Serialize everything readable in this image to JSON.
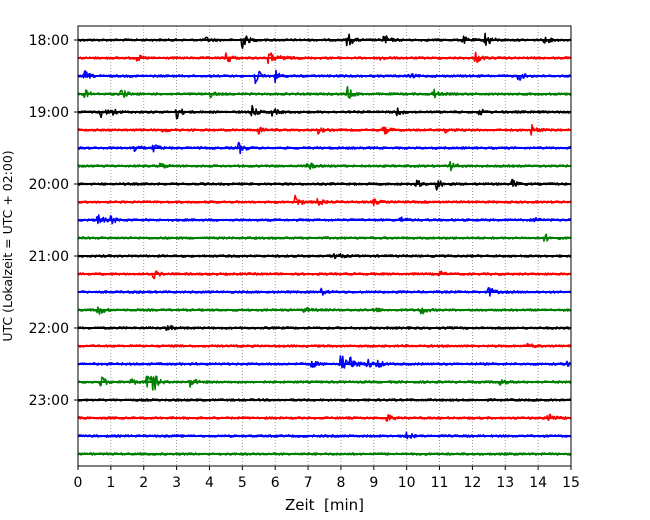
{
  "chart_data": {
    "type": "line",
    "chart_kind": "helicorder (seismogram drum plot)",
    "xlabel": "Zeit  [min]",
    "ylabel": "UTC (Lokalzeit = UTC + 02:00)",
    "xlim": [
      0,
      15
    ],
    "x_ticks": [
      0,
      1,
      2,
      3,
      4,
      5,
      6,
      7,
      8,
      9,
      10,
      11,
      12,
      13,
      14,
      15
    ],
    "x_tick_labels": [
      "0",
      "1",
      "2",
      "3",
      "4",
      "5",
      "6",
      "7",
      "8",
      "9",
      "10",
      "11",
      "12",
      "13",
      "14",
      "15"
    ],
    "vertical_grid": true,
    "grid_style": "dotted",
    "y_tick_labels": [
      "18:00",
      "19:00",
      "20:00",
      "21:00",
      "22:00",
      "23:00"
    ],
    "trace_minutes": 15,
    "trace_colors": [
      "#000000",
      "#ff0000",
      "#0000ff",
      "#008000"
    ],
    "traces": [
      {
        "start": "18:00",
        "events": [
          [
            3.9,
            0.3
          ],
          [
            5.0,
            1.0
          ],
          [
            8.2,
            0.9
          ],
          [
            9.3,
            0.7
          ],
          [
            11.7,
            0.45
          ],
          [
            12.4,
            1.0
          ],
          [
            14.2,
            0.4
          ]
        ]
      },
      {
        "start": "18:15",
        "events": [
          [
            1.8,
            0.35
          ],
          [
            4.5,
            0.8
          ],
          [
            5.8,
            0.9
          ],
          [
            6.2,
            0.4
          ],
          [
            9.2,
            0.3
          ],
          [
            12.1,
            0.65
          ]
        ]
      },
      {
        "start": "18:30",
        "events": [
          [
            0.2,
            0.55
          ],
          [
            5.4,
            1.0
          ],
          [
            6.0,
            0.6
          ],
          [
            10.1,
            0.25
          ],
          [
            13.4,
            0.55
          ]
        ]
      },
      {
        "start": "18:45",
        "events": [
          [
            0.2,
            0.5
          ],
          [
            1.3,
            0.7
          ],
          [
            4.0,
            0.4
          ],
          [
            8.2,
            0.75
          ],
          [
            10.8,
            0.6
          ]
        ]
      },
      {
        "start": "19:00",
        "events": [
          [
            0.7,
            0.6
          ],
          [
            1.0,
            0.6
          ],
          [
            3.0,
            0.8
          ],
          [
            5.3,
            0.6
          ],
          [
            5.9,
            0.5
          ],
          [
            9.7,
            0.5
          ],
          [
            12.2,
            0.4
          ]
        ]
      },
      {
        "start": "19:15",
        "events": [
          [
            2.6,
            0.3
          ],
          [
            5.5,
            0.45
          ],
          [
            7.3,
            0.35
          ],
          [
            9.3,
            0.55
          ],
          [
            11.2,
            0.35
          ],
          [
            13.8,
            0.6
          ]
        ]
      },
      {
        "start": "19:30",
        "events": [
          [
            1.7,
            0.55
          ],
          [
            2.3,
            0.55
          ],
          [
            4.9,
            0.7
          ]
        ]
      },
      {
        "start": "19:45",
        "events": [
          [
            2.5,
            0.4
          ],
          [
            7.0,
            0.5
          ],
          [
            11.3,
            0.6
          ]
        ]
      },
      {
        "start": "20:00",
        "events": [
          [
            10.3,
            0.4
          ],
          [
            10.9,
            0.75
          ],
          [
            13.2,
            0.5
          ]
        ]
      },
      {
        "start": "20:15",
        "events": [
          [
            6.6,
            0.8
          ],
          [
            7.3,
            0.4
          ],
          [
            9.0,
            0.3
          ]
        ]
      },
      {
        "start": "20:30",
        "events": [
          [
            0.6,
            0.8
          ],
          [
            1.0,
            0.45
          ],
          [
            9.8,
            0.4
          ],
          [
            13.9,
            0.35
          ]
        ]
      },
      {
        "start": "20:45",
        "events": [
          [
            14.2,
            0.45
          ]
        ]
      },
      {
        "start": "21:00",
        "events": [
          [
            7.8,
            0.75
          ]
        ]
      },
      {
        "start": "21:15",
        "events": [
          [
            2.3,
            0.5
          ],
          [
            11.0,
            0.3
          ]
        ]
      },
      {
        "start": "21:30",
        "events": [
          [
            7.4,
            0.35
          ],
          [
            12.5,
            0.6
          ]
        ]
      },
      {
        "start": "21:45",
        "events": [
          [
            0.6,
            0.8
          ],
          [
            6.9,
            0.35
          ],
          [
            9.0,
            0.3
          ],
          [
            10.4,
            0.7
          ]
        ]
      },
      {
        "start": "22:00",
        "events": [
          [
            2.7,
            0.4
          ]
        ]
      },
      {
        "start": "22:15",
        "events": [
          [
            13.7,
            0.35
          ]
        ]
      },
      {
        "start": "22:30",
        "events": [
          [
            7.1,
            0.5
          ],
          [
            8.0,
            1.3
          ],
          [
            8.3,
            0.9
          ],
          [
            8.8,
            0.6
          ],
          [
            9.1,
            0.5
          ],
          [
            14.9,
            0.6
          ]
        ]
      },
      {
        "start": "22:45",
        "events": [
          [
            0.7,
            0.7
          ],
          [
            1.6,
            0.4
          ],
          [
            2.1,
            1.6
          ],
          [
            2.3,
            0.8
          ],
          [
            3.4,
            0.7
          ],
          [
            12.8,
            0.6
          ]
        ]
      },
      {
        "start": "23:00",
        "events": []
      },
      {
        "start": "23:15",
        "events": [
          [
            9.4,
            0.45
          ],
          [
            14.3,
            0.8
          ]
        ]
      },
      {
        "start": "23:30",
        "events": [
          [
            10.0,
            0.5
          ]
        ]
      },
      {
        "start": "23:45",
        "events": []
      }
    ]
  }
}
